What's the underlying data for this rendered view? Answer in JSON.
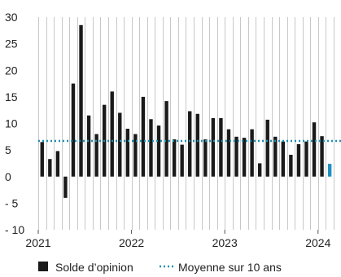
{
  "chart_data": {
    "type": "bar",
    "title": "",
    "xlabel": "",
    "ylabel": "",
    "ylim": [
      -10,
      30
    ],
    "yticks": [
      {
        "value": 30,
        "label": "30"
      },
      {
        "value": 25,
        "label": "25"
      },
      {
        "value": 20,
        "label": "20"
      },
      {
        "value": 15,
        "label": "15"
      },
      {
        "value": 10,
        "label": "10"
      },
      {
        "value": 5,
        "label": "5"
      },
      {
        "value": 0,
        "label": "0"
      },
      {
        "value": -5,
        "label": "- 5"
      },
      {
        "value": -10,
        "label": "- 10"
      }
    ],
    "xticks": [
      {
        "index": 0,
        "label": "2021"
      },
      {
        "index": 12,
        "label": "2022"
      },
      {
        "index": 24,
        "label": "2023"
      },
      {
        "index": 36,
        "label": "2024"
      }
    ],
    "grid": "vertical",
    "legend_position": "bottom",
    "series": [
      {
        "name": "Solde d’opinion",
        "color": "#1a1a1a",
        "values": [
          6.5,
          3.3,
          4.8,
          -4.0,
          17.5,
          28.5,
          11.5,
          8.0,
          13.5,
          16.0,
          12.0,
          9.0,
          8.0,
          15.0,
          10.8,
          9.6,
          14.2,
          7.0,
          6.0,
          12.3,
          11.8,
          7.0,
          11.0,
          11.0,
          8.9,
          7.5,
          7.3,
          8.9,
          2.5,
          10.7,
          7.5,
          6.6,
          4.1,
          6.1,
          6.6,
          10.2,
          7.6
        ]
      }
    ],
    "partial_bar": {
      "value": 2.4,
      "color": "#1f8fc0"
    },
    "reference_line": {
      "name": "Moyenne sur 10 ans",
      "value": 6.7,
      "color": "#1a8fb3"
    }
  }
}
